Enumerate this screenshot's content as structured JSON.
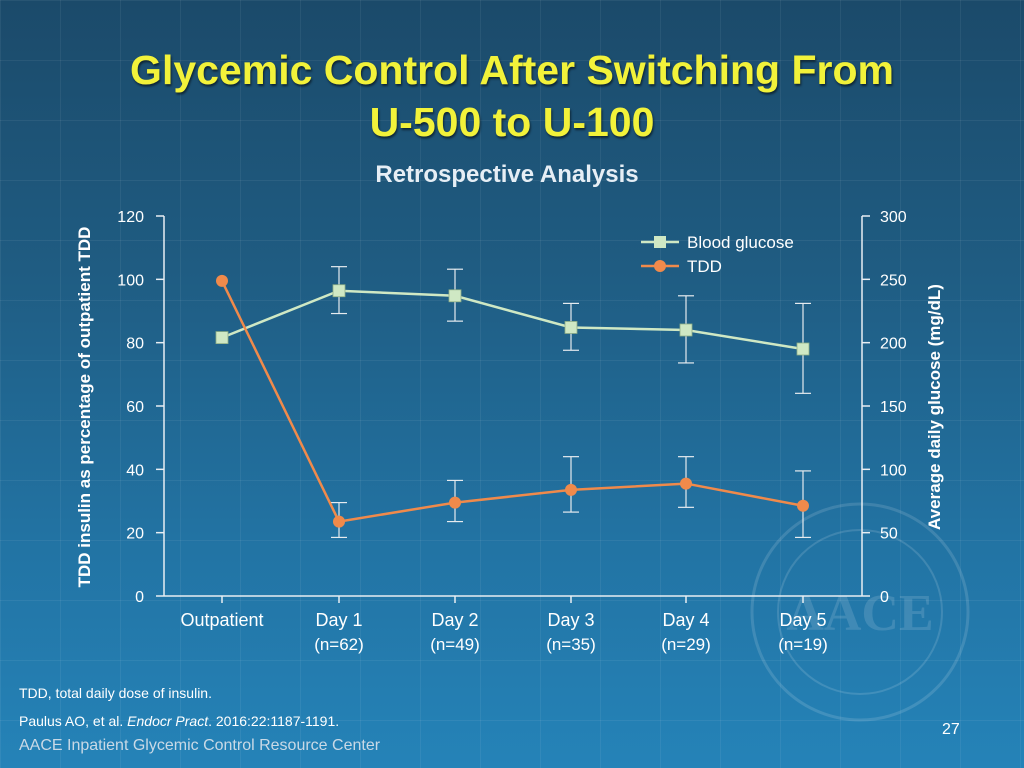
{
  "slide": {
    "title_line1": "Glycemic Control After Switching From",
    "title_line2": "U-500 to U-100",
    "subtitle": "Retrospective Analysis",
    "footnote_abbrev": "TDD, total daily dose of insulin.",
    "citation_authors": "Paulus AO, et al. ",
    "citation_journal": "Endocr Pract",
    "citation_rest": ". 2016:22:1187-1191.",
    "brand": "AACE Inpatient Glycemic Control Resource Center",
    "page_number": "27",
    "seal_text": "AACE"
  },
  "chart_data": {
    "type": "line",
    "categories": [
      "Outpatient",
      "Day 1",
      "Day 2",
      "Day 3",
      "Day 4",
      "Day 5"
    ],
    "category_sublabels": [
      "",
      "(n=62)",
      "(n=49)",
      "(n=35)",
      "(n=29)",
      "(n=19)"
    ],
    "y_left": {
      "label": "TDD insulin as percentage of outpatient TDD",
      "range": [
        0,
        120
      ],
      "ticks": [
        0,
        20,
        40,
        60,
        80,
        100,
        120
      ]
    },
    "y_right": {
      "label": "Average daily glucose (mg/dL)",
      "range": [
        0,
        300
      ],
      "ticks": [
        0,
        50,
        100,
        150,
        200,
        250,
        300
      ]
    },
    "legend_position": "top-right",
    "grid": false,
    "series": [
      {
        "name": "Blood glucose",
        "axis": "right",
        "color": "#cfe8c4",
        "marker": "square",
        "values": [
          204,
          241,
          237,
          212,
          210,
          195
        ],
        "error_low": [
          null,
          223,
          217,
          194,
          184,
          160
        ],
        "error_high": [
          null,
          260,
          258,
          231,
          237,
          231
        ]
      },
      {
        "name": "TDD",
        "axis": "left",
        "color": "#f08a4b",
        "marker": "circle",
        "values": [
          99.5,
          23.5,
          29.5,
          33.5,
          35.5,
          28.5
        ],
        "error_low": [
          null,
          18.5,
          23.5,
          26.5,
          28,
          18.5
        ],
        "error_high": [
          null,
          29.5,
          36.5,
          44,
          44,
          39.5
        ]
      }
    ]
  }
}
